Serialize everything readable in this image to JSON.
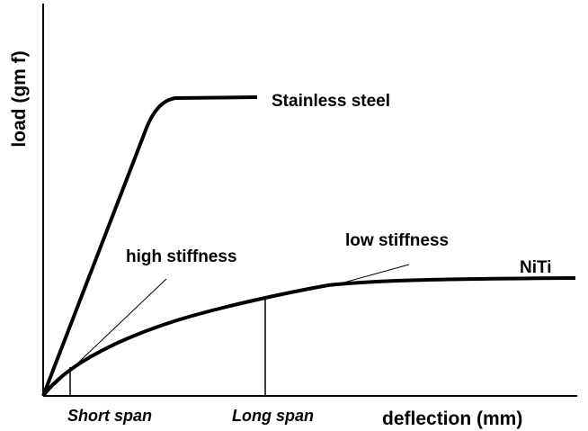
{
  "axes": {
    "y_label": "load (gm f)",
    "x_label": "deflection (mm)"
  },
  "curves": [
    {
      "label": "Stainless steel"
    },
    {
      "label": "NiTi"
    }
  ],
  "annotations": {
    "tangents": [
      "high stiffness",
      "low stiffness"
    ],
    "spans": [
      "Short span",
      "Long span"
    ]
  }
}
